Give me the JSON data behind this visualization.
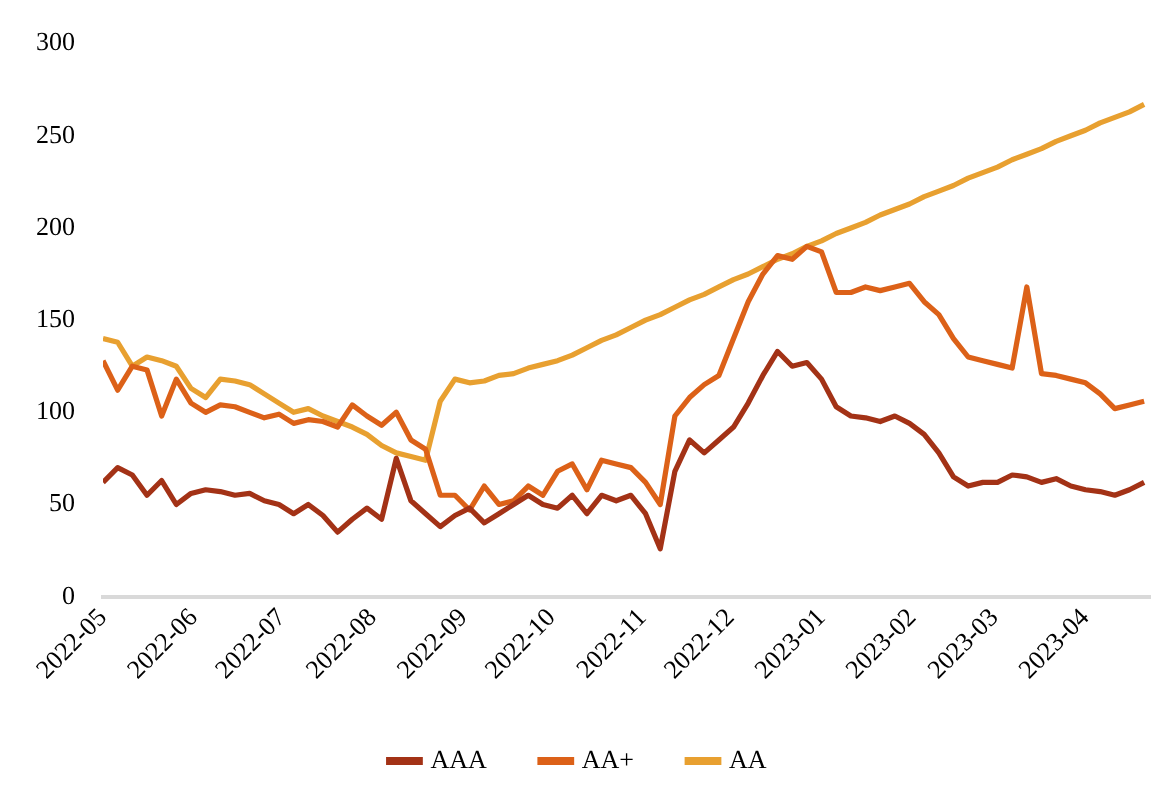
{
  "chart_data": {
    "type": "line",
    "x": [
      "2022-05-01",
      "2022-05-06",
      "2022-05-11",
      "2022-05-16",
      "2022-05-21",
      "2022-05-26",
      "2022-05-31",
      "2022-06-05",
      "2022-06-10",
      "2022-06-15",
      "2022-06-20",
      "2022-06-25",
      "2022-06-30",
      "2022-07-05",
      "2022-07-10",
      "2022-07-15",
      "2022-07-20",
      "2022-07-25",
      "2022-07-30",
      "2022-08-04",
      "2022-08-09",
      "2022-08-14",
      "2022-08-19",
      "2022-08-24",
      "2022-08-29",
      "2022-09-03",
      "2022-09-08",
      "2022-09-13",
      "2022-09-18",
      "2022-09-23",
      "2022-09-28",
      "2022-10-03",
      "2022-10-08",
      "2022-10-13",
      "2022-10-18",
      "2022-10-23",
      "2022-10-28",
      "2022-11-02",
      "2022-11-07",
      "2022-11-12",
      "2022-11-17",
      "2022-11-22",
      "2022-11-27",
      "2022-12-02",
      "2022-12-07",
      "2022-12-12",
      "2022-12-17",
      "2022-12-22",
      "2022-12-27",
      "2023-01-01",
      "2023-01-06",
      "2023-01-11",
      "2023-01-16",
      "2023-01-21",
      "2023-01-26",
      "2023-01-31",
      "2023-02-05",
      "2023-02-10",
      "2023-02-15",
      "2023-02-20",
      "2023-02-25",
      "2023-03-02",
      "2023-03-07",
      "2023-03-12",
      "2023-03-17",
      "2023-03-22",
      "2023-03-27",
      "2023-04-01",
      "2023-04-06",
      "2023-04-11",
      "2023-04-16",
      "2023-04-21"
    ],
    "series": [
      {
        "name": "AAA",
        "color": "#a33216",
        "values": [
          62,
          70,
          66,
          55,
          63,
          50,
          56,
          58,
          57,
          55,
          56,
          52,
          50,
          45,
          50,
          44,
          35,
          42,
          48,
          42,
          75,
          52,
          45,
          38,
          44,
          48,
          40,
          45,
          50,
          55,
          50,
          48,
          55,
          45,
          55,
          52,
          55,
          45,
          26,
          68,
          85,
          78,
          85,
          92,
          105,
          120,
          133,
          125,
          127,
          118,
          103,
          98,
          97,
          95,
          98,
          94,
          88,
          78,
          65,
          60,
          62,
          62,
          66,
          65,
          62,
          64,
          60,
          58,
          57,
          55,
          58,
          62
        ]
      },
      {
        "name": "AA+",
        "color": "#dc6118",
        "values": [
          128,
          112,
          125,
          123,
          98,
          118,
          105,
          100,
          104,
          103,
          100,
          97,
          99,
          94,
          96,
          95,
          92,
          104,
          98,
          93,
          100,
          85,
          80,
          55,
          55,
          47,
          60,
          50,
          52,
          60,
          55,
          68,
          72,
          58,
          74,
          72,
          70,
          62,
          50,
          98,
          108,
          115,
          120,
          140,
          160,
          175,
          185,
          183,
          190,
          187,
          165,
          165,
          168,
          166,
          168,
          170,
          160,
          153,
          140,
          130,
          128,
          126,
          124,
          168,
          121,
          120,
          118,
          116,
          110,
          102,
          104,
          106
        ]
      },
      {
        "name": "AA",
        "color": "#e8a030",
        "values": [
          140,
          138,
          125,
          130,
          128,
          125,
          113,
          108,
          118,
          117,
          115,
          110,
          105,
          100,
          102,
          98,
          95,
          92,
          88,
          82,
          78,
          76,
          74,
          106,
          118,
          116,
          117,
          120,
          121,
          124,
          126,
          128,
          131,
          135,
          139,
          142,
          146,
          150,
          153,
          157,
          161,
          164,
          168,
          172,
          175,
          179,
          183,
          186,
          190,
          193,
          197,
          200,
          203,
          207,
          210,
          213,
          217,
          220,
          223,
          227,
          230,
          233,
          237,
          240,
          243,
          247,
          250,
          253,
          257,
          260,
          263,
          267
        ]
      }
    ],
    "xlim": [
      "2022-05-01",
      "2023-04-23"
    ],
    "xticks": [
      "2022-05",
      "2022-06",
      "2022-07",
      "2022-08",
      "2022-09",
      "2022-10",
      "2022-11",
      "2022-12",
      "2023-01",
      "2023-02",
      "2023-03",
      "2023-04"
    ],
    "ylim": [
      0,
      300
    ],
    "yticks": [
      0,
      50,
      100,
      150,
      200,
      250,
      300
    ],
    "grid": false,
    "legend": "bottom",
    "marker": "none",
    "line_style": "solid"
  }
}
